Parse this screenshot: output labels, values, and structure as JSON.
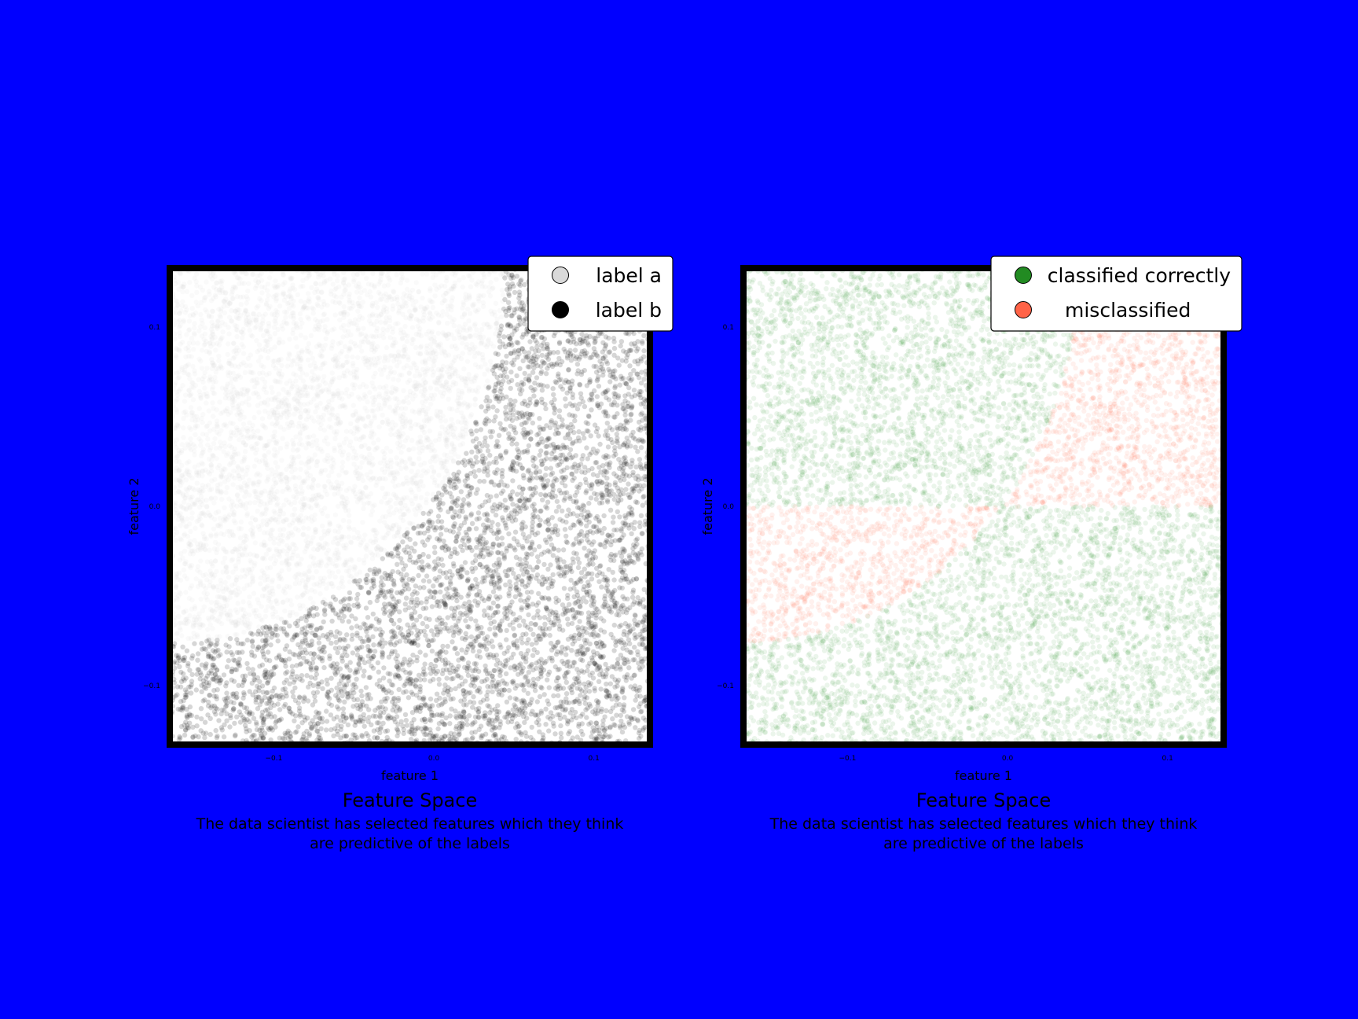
{
  "background_color": "#0000ff",
  "chart_data": [
    {
      "type": "scatter",
      "title": "Feature Space",
      "caption_lines": [
        "The data scientist has selected features which they think",
        "are predictive of the labels"
      ],
      "xlabel": "feature 1",
      "ylabel": "feature 2",
      "xlim": [
        -0.165,
        0.135
      ],
      "ylim": [
        -0.133,
        0.133
      ],
      "xticks": [
        -0.1,
        0.0,
        0.1
      ],
      "yticks": [
        0.1,
        0.0,
        -0.1
      ],
      "xtick_labels": [
        "−0.1",
        "0.0",
        "0.1"
      ],
      "ytick_labels": [
        "0.1",
        "0.0",
        "−0.1"
      ],
      "grid": false,
      "legend_position": "top-right",
      "decision_boundary": {
        "shape": "circle",
        "center": [
          -0.165,
          0.133
        ],
        "radius": 0.209
      },
      "series": [
        {
          "name": "label a",
          "region": "inside boundary",
          "color": "#d9d9d9"
        },
        {
          "name": "label b",
          "region": "outside boundary",
          "color": "#000000"
        }
      ]
    },
    {
      "type": "scatter",
      "title": "Feature Space",
      "caption_lines": [
        "The data scientist has selected features which they think",
        "are predictive of the labels"
      ],
      "xlabel": "feature 1",
      "ylabel": "feature 2",
      "xlim": [
        -0.165,
        0.135
      ],
      "ylim": [
        -0.133,
        0.133
      ],
      "xticks": [
        -0.1,
        0.0,
        0.1
      ],
      "yticks": [
        0.1,
        0.0,
        -0.1
      ],
      "xtick_labels": [
        "−0.1",
        "0.0",
        "0.1"
      ],
      "ytick_labels": [
        "0.1",
        "0.0",
        "−0.1"
      ],
      "grid": false,
      "legend_position": "top-right",
      "decision_boundary": {
        "shape": "circle",
        "center": [
          -0.165,
          0.133
        ],
        "radius": 0.209
      },
      "classifier_split": {
        "feature": "feature 2",
        "value": 0.0
      },
      "series": [
        {
          "name": "classified correctly",
          "color": "#228b22"
        },
        {
          "name": "misclassified",
          "color": "#ff6347"
        }
      ]
    }
  ]
}
